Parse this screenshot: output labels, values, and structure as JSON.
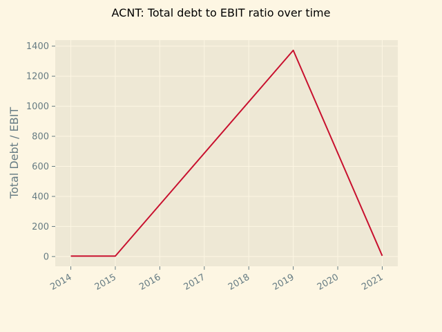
{
  "chart_data": {
    "type": "line",
    "title": "ACNT: Total debt to EBIT ratio over time",
    "xlabel": "",
    "ylabel": "Total Debt / EBIT",
    "x": [
      "2014",
      "2015",
      "2016",
      "2017",
      "2018",
      "2019",
      "2020",
      "2021"
    ],
    "series": [
      {
        "values": [
          3,
          3,
          null,
          null,
          null,
          1372,
          null,
          5
        ]
      }
    ],
    "line_points": [
      {
        "x": "2014",
        "y": 3
      },
      {
        "x": "2015",
        "y": 3
      },
      {
        "x": "2019",
        "y": 1372
      },
      {
        "x": "2021",
        "y": 5
      }
    ],
    "yticks": [
      0,
      200,
      400,
      600,
      800,
      1000,
      1200,
      1400
    ],
    "ylim": [
      -65,
      1440
    ],
    "xlim": [
      "2013.65",
      "2021.35"
    ],
    "grid": true,
    "legend": "none",
    "colors": {
      "figure_bg": "#fdf6e3",
      "axes_bg": "#eee8d5",
      "grid": "#fdf6e3",
      "line": "#c8102e",
      "tick_text": "#657b83"
    }
  }
}
